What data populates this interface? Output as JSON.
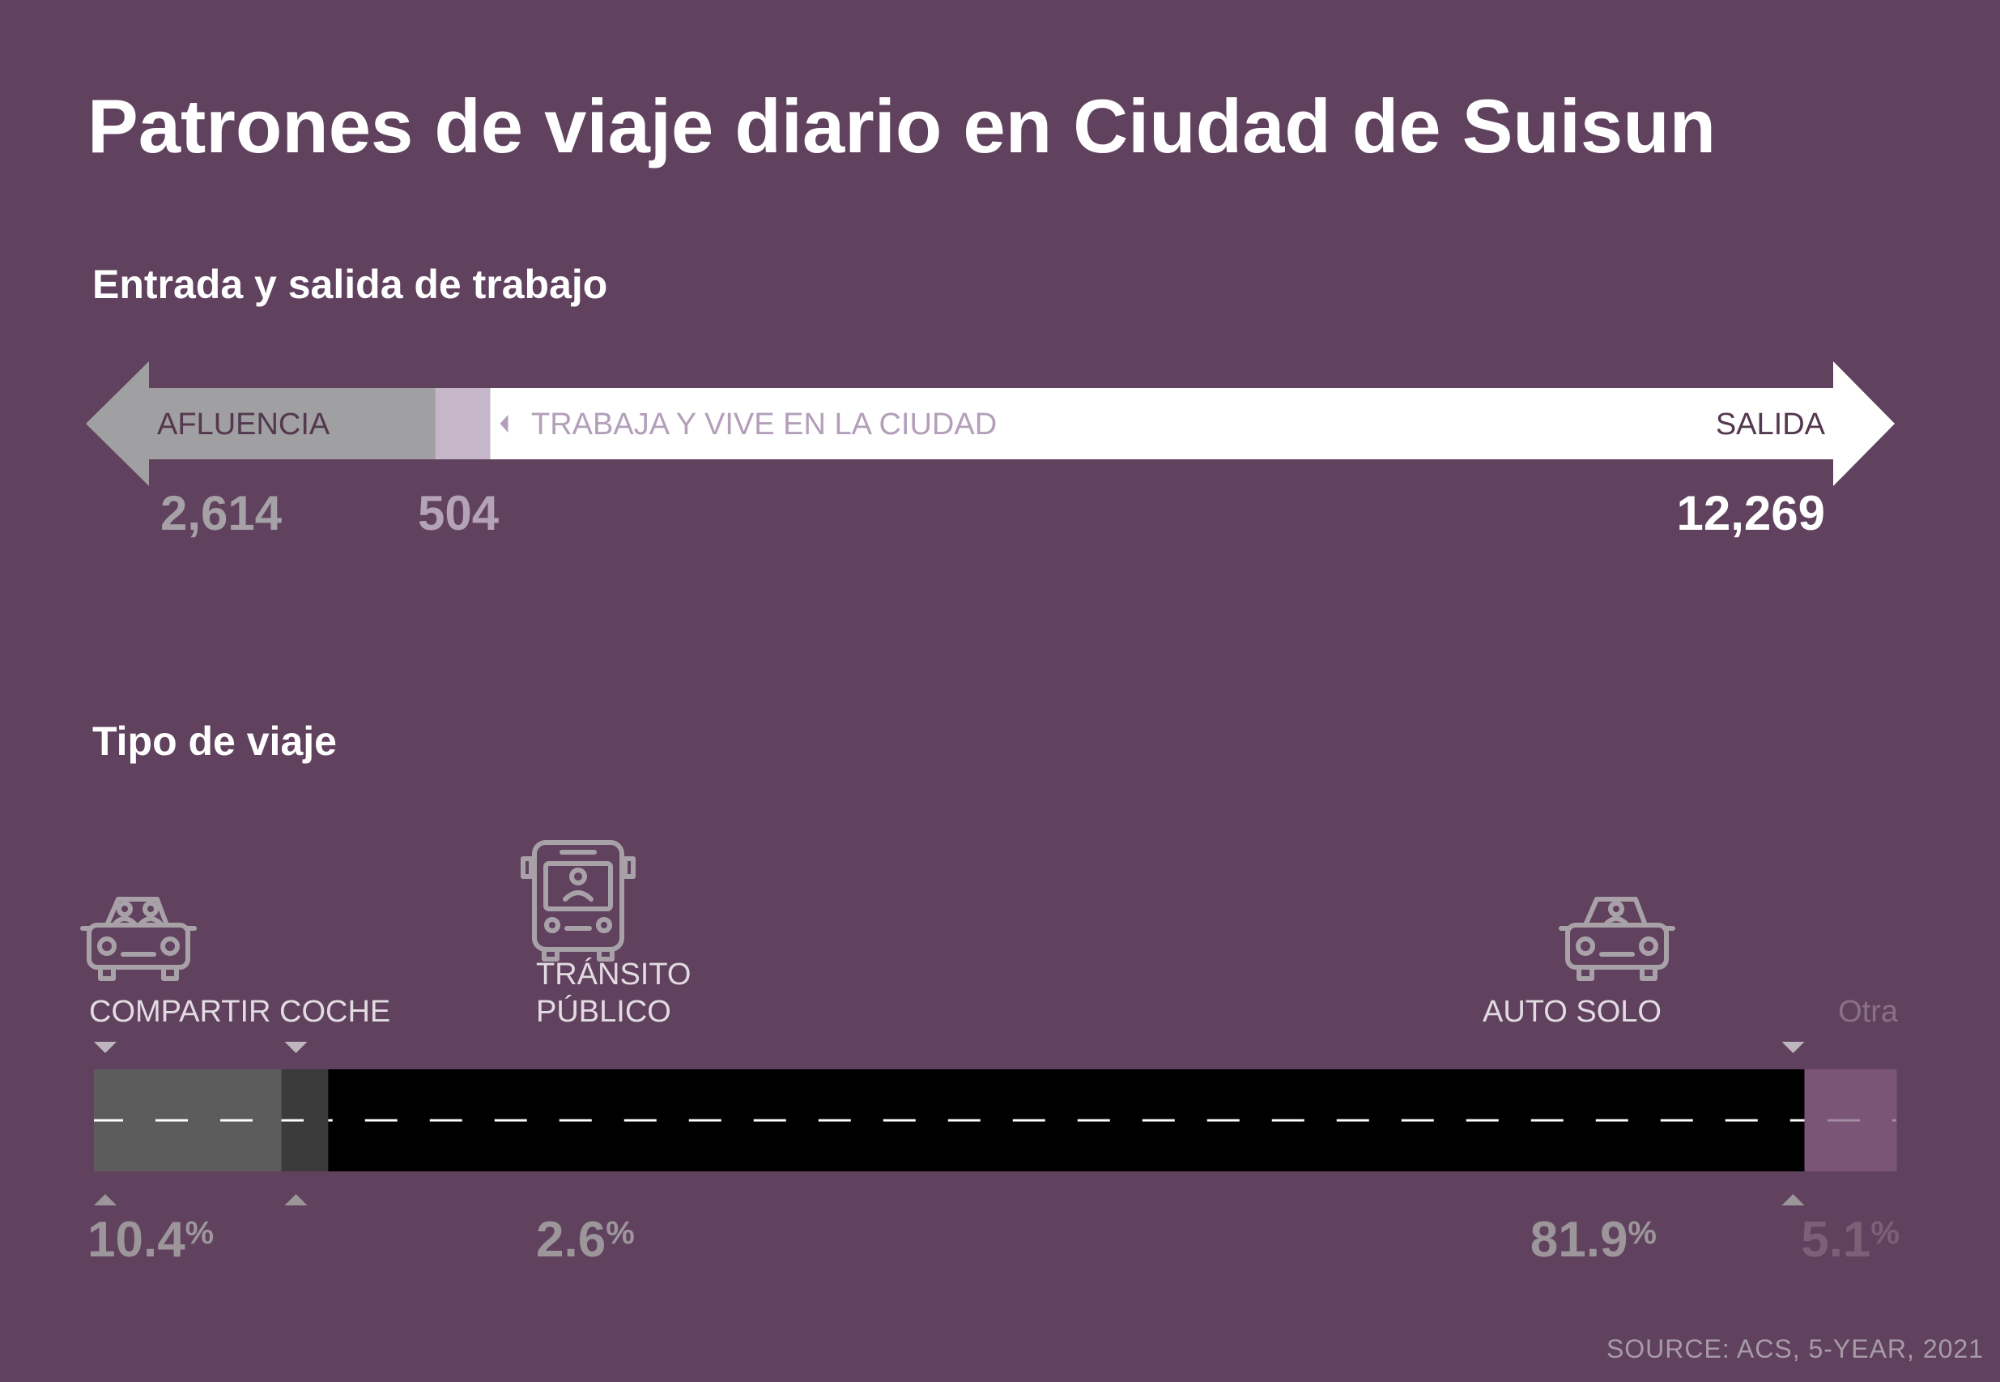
{
  "title": "Patrones de viaje diario en Ciudad de Suisun",
  "flow_section": {
    "subtitle": "Entrada y salida de trabajo",
    "inflow_label": "AFLUENCIA",
    "within_label": "TRABAJA Y VIVE EN LA CIUDAD",
    "outflow_label": "SALIDA"
  },
  "mode_section": {
    "subtitle": "Tipo de viaje"
  },
  "source": "SOURCE: ACS, 5-YEAR, 2021",
  "colors": {
    "background": "#60415e",
    "inflow": "#a09fa1",
    "within": "#c6b6ca",
    "outflow": "#ffffff",
    "carpool": "#5c5c5c",
    "transit": "#3b3b3b",
    "drive_alone": "#000000",
    "other": "#7a5576"
  },
  "chart_data": [
    {
      "type": "bar",
      "title": "Entrada y salida de trabajo",
      "categories": [
        "AFLUENCIA",
        "TRABAJA Y VIVE EN LA CIUDAD",
        "SALIDA"
      ],
      "values": [
        2614,
        504,
        12269
      ],
      "value_labels": [
        "2,614",
        "504",
        "12,269"
      ]
    },
    {
      "type": "bar",
      "stacked": true,
      "title": "Tipo de viaje",
      "categories": [
        "COMPARTIR COCHE",
        "TRÁNSITO PÚBLICO",
        "AUTO SOLO",
        "Otra"
      ],
      "values": [
        10.4,
        2.6,
        81.9,
        5.1
      ],
      "value_labels": [
        "10.4",
        "2.6",
        "81.9",
        "5.1"
      ],
      "unit": "%",
      "icons": [
        "carpool-icon",
        "bus-icon",
        "car-icon",
        ""
      ]
    }
  ]
}
